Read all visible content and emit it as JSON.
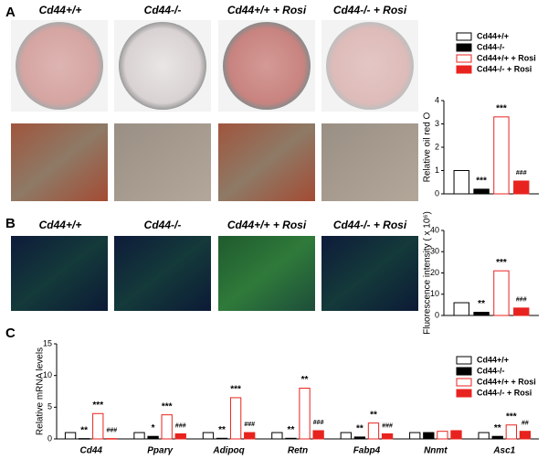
{
  "panel_labels": [
    "A",
    "B",
    "C"
  ],
  "photo_labels": {
    "A": [
      "Cd44+/+",
      "Cd44-/-",
      "Cd44+/+ + Rosi",
      "Cd44-/- + Rosi"
    ],
    "B": [
      "Cd44+/+",
      "Cd44-/-",
      "Cd44+/+ + Rosi",
      "Cd44-/- + Rosi"
    ]
  },
  "chart_data": [
    {
      "type": "bar",
      "ylabel": "Relative oil red O",
      "categories": [
        null
      ],
      "legend": true,
      "series": [
        {
          "name": "Cd44+/+",
          "color": "#000000",
          "fill": "#ffffff",
          "values": [
            1.0
          ]
        },
        {
          "name": "Cd44-/-",
          "color": "#000000",
          "fill": "#000000",
          "values": [
            0.2
          ]
        },
        {
          "name": "Cd44+/+ + Rosi",
          "color": "#e8231f",
          "fill": "#ffffff",
          "values": [
            3.3
          ]
        },
        {
          "name": "Cd44-/- + Rosi",
          "color": "#e8231f",
          "fill": "#e8231f",
          "values": [
            0.55
          ]
        }
      ],
      "annotations": [
        {
          "series": 1,
          "category": 0,
          "text": "***"
        },
        {
          "series": 2,
          "category": 0,
          "text": "***"
        },
        {
          "series": 3,
          "category": 0,
          "text": "###"
        }
      ],
      "ylim": [
        0,
        4
      ],
      "yticks": [
        0,
        1,
        2,
        3,
        4
      ]
    },
    {
      "type": "bar",
      "ylabel": "Fluorescence intensity ( x 10⁶)",
      "categories": [
        null
      ],
      "series": [
        {
          "color": "#000000",
          "fill": "#ffffff",
          "values": [
            6
          ]
        },
        {
          "color": "#000000",
          "fill": "#000000",
          "values": [
            1.5
          ]
        },
        {
          "color": "#e8231f",
          "fill": "#ffffff",
          "values": [
            21
          ]
        },
        {
          "color": "#e8231f",
          "fill": "#e8231f",
          "values": [
            3.5
          ]
        }
      ],
      "annotations": [
        {
          "series": 1,
          "category": 0,
          "text": "**"
        },
        {
          "series": 2,
          "category": 0,
          "text": "***"
        },
        {
          "series": 3,
          "category": 0,
          "text": "###"
        }
      ],
      "ylim": [
        0,
        40
      ],
      "yticks": [
        0,
        10,
        20,
        30,
        40
      ]
    },
    {
      "type": "bar",
      "ylabel": "Relative mRNA levels",
      "legend": true,
      "categories": [
        "Cd44",
        "Pparγ",
        "Adipoq",
        "Retn",
        "Fabp4",
        "Nnmt",
        "Asc1"
      ],
      "series": [
        {
          "name": "Cd44+/+",
          "color": "#000000",
          "fill": "#ffffff",
          "values": [
            1,
            1,
            1,
            1,
            1,
            1,
            1
          ]
        },
        {
          "name": "Cd44-/-",
          "color": "#000000",
          "fill": "#000000",
          "values": [
            0.05,
            0.4,
            0.1,
            0.1,
            0.3,
            1,
            0.4
          ]
        },
        {
          "name": "Cd44+/+ + Rosi",
          "color": "#e8231f",
          "fill": "#ffffff",
          "values": [
            4,
            3.8,
            6.5,
            8,
            2.5,
            1.2,
            2.2
          ]
        },
        {
          "name": "Cd44-/- + Rosi",
          "color": "#e8231f",
          "fill": "#e8231f",
          "values": [
            0.05,
            0.8,
            1.0,
            1.3,
            0.8,
            1.3,
            1.2
          ]
        }
      ],
      "annotations": [
        {
          "series": 1,
          "category": 0,
          "text": "**"
        },
        {
          "series": 2,
          "category": 0,
          "text": "***"
        },
        {
          "series": 3,
          "category": 0,
          "text": "###"
        },
        {
          "series": 1,
          "category": 1,
          "text": "*"
        },
        {
          "series": 2,
          "category": 1,
          "text": "***"
        },
        {
          "series": 3,
          "category": 1,
          "text": "###"
        },
        {
          "series": 1,
          "category": 2,
          "text": "**"
        },
        {
          "series": 2,
          "category": 2,
          "text": "***"
        },
        {
          "series": 3,
          "category": 2,
          "text": "###"
        },
        {
          "series": 1,
          "category": 3,
          "text": "**"
        },
        {
          "series": 2,
          "category": 3,
          "text": "**"
        },
        {
          "series": 3,
          "category": 3,
          "text": "###"
        },
        {
          "series": 1,
          "category": 4,
          "text": "**"
        },
        {
          "series": 2,
          "category": 4,
          "text": "**"
        },
        {
          "series": 3,
          "category": 4,
          "text": "###"
        },
        {
          "series": 1,
          "category": 6,
          "text": "**"
        },
        {
          "series": 2,
          "category": 6,
          "text": "***"
        },
        {
          "series": 3,
          "category": 6,
          "text": "##"
        }
      ],
      "ylim": [
        0,
        15
      ],
      "yticks": [
        0,
        5,
        10,
        15
      ]
    }
  ]
}
